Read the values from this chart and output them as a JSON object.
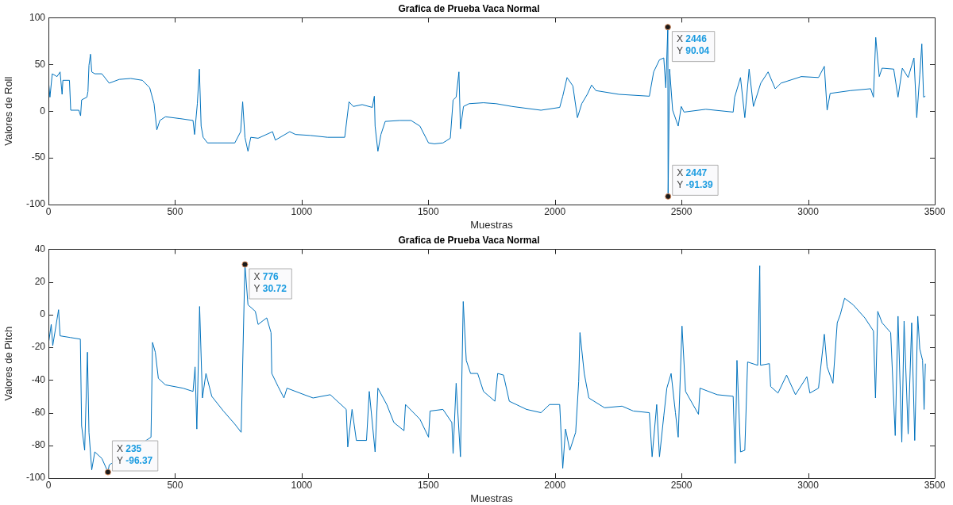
{
  "chart_data": [
    {
      "type": "line",
      "title": "Grafica de Prueba Vaca Normal",
      "xlabel": "Muestras",
      "ylabel": "Valores de Roll",
      "color": "#0072bd",
      "marker": "none",
      "grid": false,
      "xlim": [
        0,
        3500
      ],
      "xticks": [
        0,
        500,
        1000,
        1500,
        2000,
        2500,
        3000,
        3500
      ],
      "ylim": [
        -100,
        100
      ],
      "yticks": [
        -100,
        -50,
        0,
        50,
        100
      ],
      "x": [
        1,
        6,
        15,
        34,
        46,
        54,
        57,
        83,
        88,
        120,
        127,
        131,
        152,
        156,
        160,
        166,
        171,
        183,
        211,
        240,
        280,
        325,
        371,
        400,
        417,
        428,
        440,
        462,
        520,
        571,
        577,
        588,
        596,
        603,
        611,
        628,
        668,
        736,
        759,
        767,
        776,
        788,
        799,
        828,
        885,
        896,
        953,
        976,
        1033,
        1102,
        1170,
        1187,
        1204,
        1239,
        1279,
        1287,
        1290,
        1301,
        1313,
        1330,
        1387,
        1432,
        1467,
        1501,
        1524,
        1558,
        1587,
        1598,
        1610,
        1621,
        1627,
        1639,
        1661,
        1718,
        1768,
        1831,
        1945,
        2019,
        2031,
        2048,
        2071,
        2089,
        2106,
        2128,
        2145,
        2162,
        2253,
        2373,
        2390,
        2413,
        2430,
        2438,
        2446,
        2447,
        2453,
        2465,
        2487,
        2499,
        2510,
        2596,
        2704,
        2710,
        2733,
        2750,
        2767,
        2784,
        2813,
        2842,
        2870,
        2893,
        2973,
        3041,
        3064,
        3075,
        3087,
        3167,
        3247,
        3258,
        3267,
        3281,
        3292,
        3338,
        3355,
        3372,
        3395,
        3418,
        3429,
        3441,
        3449,
        3456,
        3463
      ],
      "values": [
        30,
        15,
        40,
        37,
        42,
        18,
        33,
        33,
        1,
        1,
        -5,
        12,
        15,
        21,
        49,
        61,
        42,
        40,
        40,
        30,
        34,
        35,
        33,
        25,
        8,
        -20,
        -10,
        -6,
        -8,
        -10,
        -25,
        8,
        45,
        -16,
        -28,
        -34,
        -34,
        -34,
        -22,
        10,
        -28,
        -43,
        -28,
        -29,
        -22,
        -31,
        -22,
        -25,
        -26,
        -28,
        -28,
        10,
        5,
        7,
        4,
        16,
        -16,
        -43,
        -25,
        -11,
        -10,
        -10,
        -16,
        -34,
        -35,
        -34,
        -29,
        12,
        15,
        42,
        -19,
        5,
        8,
        9,
        8,
        5,
        1,
        4,
        16,
        36,
        27,
        -7,
        8,
        18,
        28,
        22,
        18,
        16,
        42,
        55,
        57,
        25,
        90.04,
        -91.39,
        45,
        1,
        -16,
        5,
        -1,
        2,
        -1,
        15,
        36,
        -7,
        45,
        5,
        30,
        42,
        24,
        30,
        37,
        36,
        48,
        1,
        19,
        22,
        24,
        15,
        79,
        37,
        46,
        45,
        15,
        46,
        36,
        57,
        -7,
        39,
        72,
        15,
        16
      ],
      "annotations": [
        {
          "text": "X 2446\nY 90.04",
          "x": 2446,
          "y": 90.04
        },
        {
          "text": "X 2447\nY -91.39",
          "x": 2447,
          "y": -91.39
        }
      ]
    },
    {
      "type": "line",
      "title": "Grafica de Prueba Vaca Normal",
      "xlabel": "Muestras",
      "ylabel": "Valores de Pitch",
      "color": "#0072bd",
      "marker": "none",
      "grid": false,
      "xlim": [
        0,
        3500
      ],
      "xticks": [
        0,
        500,
        1000,
        1500,
        2000,
        2500,
        3000,
        3500
      ],
      "ylim": [
        -100,
        40
      ],
      "yticks": [
        -100,
        -80,
        -60,
        -40,
        -20,
        0,
        20,
        40
      ],
      "x": [
        1,
        11,
        17,
        40,
        46,
        86,
        126,
        131,
        143,
        154,
        160,
        171,
        183,
        211,
        235,
        240,
        405,
        411,
        422,
        434,
        462,
        531,
        571,
        579,
        586,
        597,
        608,
        622,
        645,
        691,
        736,
        761,
        776,
        788,
        817,
        828,
        862,
        879,
        882,
        907,
        930,
        942,
        1010,
        1045,
        1113,
        1176,
        1182,
        1199,
        1216,
        1256,
        1267,
        1290,
        1301,
        1336,
        1364,
        1404,
        1410,
        1467,
        1501,
        1507,
        1558,
        1593,
        1598,
        1610,
        1627,
        1638,
        1650,
        1667,
        1695,
        1718,
        1763,
        1774,
        1797,
        1820,
        1888,
        1945,
        1979,
        2019,
        2031,
        2042,
        2059,
        2082,
        2094,
        2099,
        2116,
        2134,
        2196,
        2265,
        2310,
        2373,
        2384,
        2402,
        2413,
        2430,
        2442,
        2459,
        2476,
        2487,
        2502,
        2516,
        2567,
        2573,
        2641,
        2704,
        2712,
        2719,
        2733,
        2750,
        2761,
        2801,
        2809,
        2812,
        2847,
        2852,
        2881,
        2915,
        2950,
        2995,
        3007,
        3041,
        3064,
        3075,
        3098,
        3115,
        3127,
        3144,
        3178,
        3224,
        3258,
        3266,
        3275,
        3292,
        3326,
        3344,
        3355,
        3370,
        3379,
        3395,
        3409,
        3421,
        3433,
        3441,
        3452,
        3458,
        3463
      ],
      "values": [
        -17,
        -6,
        -19,
        3,
        -13,
        -14,
        -15,
        -68,
        -83,
        -23,
        -72,
        -95,
        -84,
        -88,
        -96.37,
        -92,
        -75,
        -17,
        -23,
        -39,
        -43,
        -45,
        -47,
        -32,
        -70,
        5,
        -51,
        -36,
        -50,
        -59,
        -67,
        -72,
        30.72,
        6,
        2,
        -6,
        -2,
        -11,
        -36,
        -44,
        -51,
        -45,
        -49,
        -51,
        -49,
        -58,
        -81,
        -58,
        -77,
        -77,
        -47,
        -84,
        -45,
        -55,
        -66,
        -71,
        -55,
        -64,
        -75,
        -59,
        -58,
        -66,
        -85,
        -42,
        -87,
        8,
        -28,
        -36,
        -36,
        -47,
        -53,
        -36,
        -37,
        -53,
        -58,
        -60,
        -55,
        -55,
        -94,
        -70,
        -83,
        -72,
        -41,
        -11,
        -36,
        -51,
        -57,
        -56,
        -59,
        -60,
        -87,
        -55,
        -87,
        -62,
        -45,
        -36,
        -60,
        -75,
        -7,
        -47,
        -61,
        -45,
        -49,
        -50,
        -91,
        -28,
        -84,
        -83,
        -29,
        -31,
        30,
        -31,
        -30,
        -44,
        -48,
        -37,
        -49,
        -38,
        -48,
        -45,
        -12,
        -32,
        -42,
        -5,
        0,
        10,
        6,
        -2,
        -10,
        -51,
        2,
        -5,
        -11,
        -74,
        -1,
        -78,
        -4,
        -73,
        -5,
        -77,
        -1,
        -21,
        -28,
        -58,
        -30
      ],
      "annotations": [
        {
          "text": "X 776\nY 30.72",
          "x": 776,
          "y": 30.72
        },
        {
          "text": "X 235\nY -96.37",
          "x": 235,
          "y": -96.37
        }
      ]
    }
  ]
}
